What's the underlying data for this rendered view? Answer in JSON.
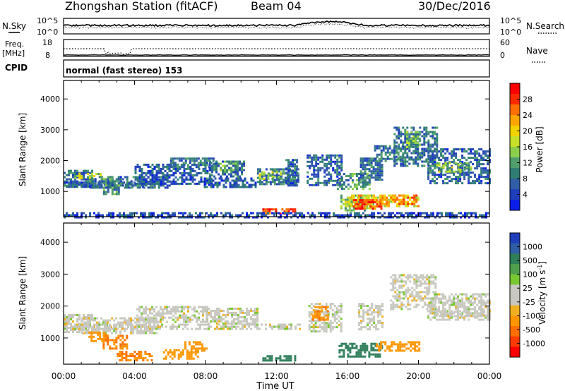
{
  "header": {
    "station": "Zhongshan Station (fitACF)",
    "beam": "Beam 04",
    "date": "30/Dec/2016"
  },
  "noise_panel": {
    "left_label": "N.Sky",
    "right_label": "N.Search",
    "left_ticks": [
      "10^5",
      "10^0"
    ],
    "right_ticks": [
      "10^5",
      "10^0"
    ]
  },
  "freq_panel": {
    "left_label_line1": "Freq.",
    "left_label_line2": "[MHz]",
    "left_ticks": [
      "18",
      "8"
    ],
    "right_label": "Nave",
    "right_ticks": [
      "60",
      "0"
    ]
  },
  "cpid_panel": {
    "label": "CPID",
    "text": "normal (fast stereo) 153"
  },
  "x_axis": {
    "label": "Time UT",
    "tick_labels": [
      "00:00",
      "04:00",
      "08:00",
      "12:00",
      "16:00",
      "20:00",
      "00:00"
    ]
  },
  "power_colorbar": {
    "label": "Power [dB]",
    "ticks": [
      "28",
      "24",
      "20",
      "16",
      "12",
      "8",
      "4"
    ],
    "colors": [
      "#ff0000",
      "#ff2a00",
      "#ff6e00",
      "#ffa400",
      "#f2d200",
      "#c6df2a",
      "#8ccf4c",
      "#4f9e6c",
      "#2f7e74",
      "#2f5da6",
      "#1f3ebc",
      "#0a1ee8"
    ]
  },
  "velocity_colorbar": {
    "label": "Velocity [m s^-1]",
    "ticks": [
      "1000",
      "500",
      "100",
      "25",
      "-25",
      "-100",
      "-500",
      "-1000"
    ],
    "colors": [
      "#1f3ebc",
      "#2f5da6",
      "#2f7e5a",
      "#4f9e4c",
      "#78c832",
      "#c8c8c0",
      "#c8c8c0",
      "#f0b020",
      "#ff9600",
      "#ff6e00",
      "#ff3c00",
      "#ff0000"
    ]
  },
  "chart_data": [
    {
      "type": "heatmap",
      "title": "",
      "xlabel": "Time UT",
      "ylabel": "Slant Range [km]",
      "xlim": [
        0,
        24
      ],
      "ylim": [
        180,
        4600
      ],
      "yticks": [
        "1000",
        "2000",
        "3000",
        "4000"
      ],
      "colorbar_label": "Power [dB]",
      "color_range": [
        0,
        32
      ],
      "regions": [
        {
          "t": [
            0.0,
            1.6
          ],
          "r": [
            1200,
            1700
          ],
          "value": 8
        },
        {
          "t": [
            0.6,
            2.1
          ],
          "r": [
            1400,
            1600
          ],
          "value": 16
        },
        {
          "t": [
            0.0,
            4.6
          ],
          "r": [
            1120,
            1320
          ],
          "value": 6
        },
        {
          "t": [
            1.5,
            6.0
          ],
          "r": [
            1150,
            1500
          ],
          "value": 7
        },
        {
          "t": [
            2.1,
            3.1
          ],
          "r": [
            900,
            1500
          ],
          "value": 10
        },
        {
          "t": [
            4.0,
            8.3
          ],
          "r": [
            1250,
            1900
          ],
          "value": 6
        },
        {
          "t": [
            6.0,
            8.4
          ],
          "r": [
            1800,
            2100
          ],
          "value": 8
        },
        {
          "t": [
            7.9,
            10.8
          ],
          "r": [
            1150,
            1450
          ],
          "value": 6
        },
        {
          "t": [
            8.2,
            10.2
          ],
          "r": [
            1500,
            2000
          ],
          "value": 8
        },
        {
          "t": [
            8.8,
            9.8
          ],
          "r": [
            1650,
            2000
          ],
          "value": 12
        },
        {
          "t": [
            10.9,
            13.2
          ],
          "r": [
            1250,
            1750
          ],
          "value": 8
        },
        {
          "t": [
            11.0,
            12.3
          ],
          "r": [
            1400,
            1650
          ],
          "value": 16
        },
        {
          "t": [
            12.5,
            13.2
          ],
          "r": [
            1200,
            2050
          ],
          "value": 7
        },
        {
          "t": [
            11.2,
            13.1
          ],
          "r": [
            300,
            450
          ],
          "value": 28
        },
        {
          "t": [
            13.7,
            15.7
          ],
          "r": [
            1200,
            2200
          ],
          "value": 7
        },
        {
          "t": [
            15.4,
            17.2
          ],
          "r": [
            1100,
            1600
          ],
          "value": 10
        },
        {
          "t": [
            15.6,
            17.5
          ],
          "r": [
            400,
            900
          ],
          "value": 14
        },
        {
          "t": [
            16.0,
            20.0
          ],
          "r": [
            500,
            900
          ],
          "value": 20
        },
        {
          "t": [
            16.3,
            17.9
          ],
          "r": [
            450,
            750
          ],
          "value": 28
        },
        {
          "t": [
            17.8,
            19.9
          ],
          "r": [
            560,
            900
          ],
          "value": 24
        },
        {
          "t": [
            16.7,
            18.0
          ],
          "r": [
            1400,
            2100
          ],
          "value": 8
        },
        {
          "t": [
            17.5,
            19.1
          ],
          "r": [
            2000,
            2500
          ],
          "value": 8
        },
        {
          "t": [
            18.6,
            21.0
          ],
          "r": [
            1800,
            3100
          ],
          "value": 8
        },
        {
          "t": [
            19.3,
            20.1
          ],
          "r": [
            2450,
            2950
          ],
          "value": 12
        },
        {
          "t": [
            20.5,
            24.0
          ],
          "r": [
            1300,
            2400
          ],
          "value": 7
        },
        {
          "t": [
            21.0,
            23.0
          ],
          "r": [
            1650,
            1950
          ],
          "value": 14
        },
        {
          "t": [
            0.0,
            24.0
          ],
          "r": [
            180,
            330
          ],
          "value": 5
        }
      ]
    },
    {
      "type": "heatmap",
      "title": "",
      "xlabel": "Time UT",
      "ylabel": "Slant Range [km]",
      "xlim": [
        0,
        24
      ],
      "ylim": [
        180,
        4600
      ],
      "yticks": [
        "1000",
        "2000",
        "3000",
        "4000"
      ],
      "colorbar_label": "Velocity [m s^-1]",
      "regions": [
        {
          "t": [
            0.0,
            1.6
          ],
          "r": [
            1200,
            1750
          ],
          "value": 0
        },
        {
          "t": [
            0.0,
            13.3
          ],
          "r": [
            1300,
            1450
          ],
          "value": 0
        },
        {
          "t": [
            1.0,
            5.2
          ],
          "r": [
            1150,
            1650
          ],
          "value": 0
        },
        {
          "t": [
            1.4,
            2.4
          ],
          "r": [
            900,
            1200
          ],
          "value": -250
        },
        {
          "t": [
            2.2,
            3.6
          ],
          "r": [
            700,
            1100
          ],
          "value": -300
        },
        {
          "t": [
            3.0,
            5.0
          ],
          "r": [
            300,
            600
          ],
          "value": -300
        },
        {
          "t": [
            4.1,
            8.1
          ],
          "r": [
            1500,
            2000
          ],
          "value": 0
        },
        {
          "t": [
            5.6,
            7.6
          ],
          "r": [
            350,
            650
          ],
          "value": -200
        },
        {
          "t": [
            6.8,
            8.0
          ],
          "r": [
            600,
            900
          ],
          "value": -150
        },
        {
          "t": [
            8.0,
            10.9
          ],
          "r": [
            1450,
            1950
          ],
          "value": 0
        },
        {
          "t": [
            11.2,
            13.1
          ],
          "r": [
            300,
            460
          ],
          "value": 150
        },
        {
          "t": [
            13.8,
            15.7
          ],
          "r": [
            1200,
            2100
          ],
          "value": 0
        },
        {
          "t": [
            14.0,
            14.9
          ],
          "r": [
            1600,
            2000
          ],
          "value": -300
        },
        {
          "t": [
            15.5,
            17.9
          ],
          "r": [
            400,
            850
          ],
          "value": 200
        },
        {
          "t": [
            17.6,
            20.0
          ],
          "r": [
            600,
            900
          ],
          "value": -150
        },
        {
          "t": [
            16.6,
            18.0
          ],
          "r": [
            1300,
            2100
          ],
          "value": 0
        },
        {
          "t": [
            18.4,
            21.0
          ],
          "r": [
            1900,
            3000
          ],
          "value": 0
        },
        {
          "t": [
            20.5,
            24.0
          ],
          "r": [
            1600,
            2400
          ],
          "value": 0
        },
        {
          "t": [
            20.9,
            24.0
          ],
          "r": [
            1700,
            1850
          ],
          "value": 0
        }
      ]
    }
  ]
}
